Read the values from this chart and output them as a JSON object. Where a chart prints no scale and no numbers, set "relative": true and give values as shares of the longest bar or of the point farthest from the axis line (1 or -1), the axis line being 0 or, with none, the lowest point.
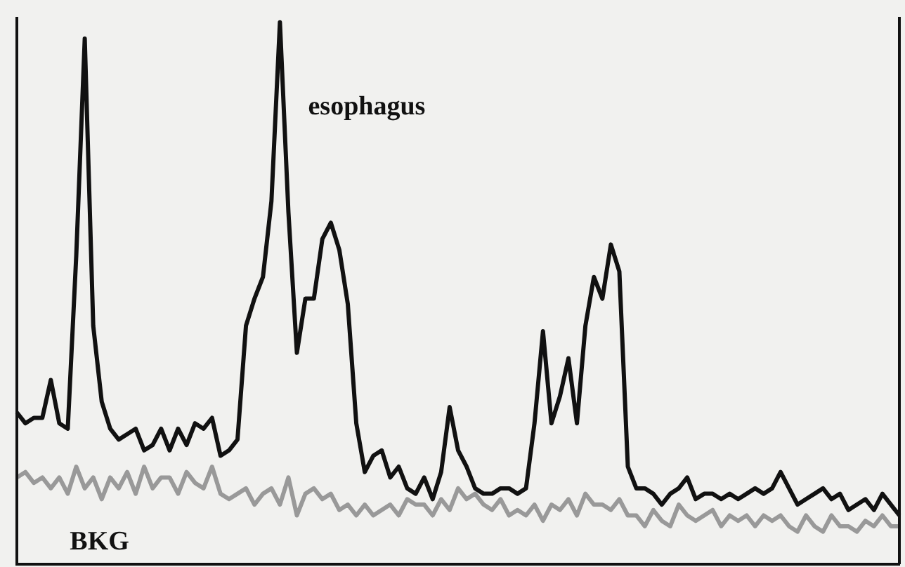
{
  "chart_data": {
    "type": "line",
    "relative": true,
    "categories": [
      null,
      null,
      null,
      null,
      null,
      null,
      null,
      null,
      null,
      null,
      null,
      null,
      null,
      null,
      null,
      null,
      null,
      null,
      null,
      null,
      null,
      null,
      null,
      null,
      null,
      null,
      null,
      null,
      null,
      null,
      null,
      null,
      null,
      null,
      null,
      null,
      null,
      null,
      null,
      null,
      null,
      null,
      null,
      null,
      null,
      null,
      null,
      null,
      null,
      null,
      null,
      null,
      null,
      null,
      null,
      null,
      null,
      null,
      null,
      null,
      null,
      null,
      null,
      null,
      null,
      null,
      null,
      null,
      null,
      null,
      null,
      null,
      null,
      null,
      null,
      null,
      null,
      null,
      null,
      null,
      null,
      null,
      null,
      null,
      null,
      null,
      null,
      null,
      null,
      null,
      null,
      null,
      null,
      null,
      null,
      null,
      null,
      null,
      null,
      null,
      null,
      null,
      null,
      null,
      null
    ],
    "series": [
      {
        "name": "esophagus",
        "color": "#111111",
        "values": [
          0.28,
          0.26,
          0.27,
          0.27,
          0.34,
          0.26,
          0.25,
          0.57,
          0.97,
          0.44,
          0.3,
          0.25,
          0.23,
          0.24,
          0.25,
          0.21,
          0.22,
          0.25,
          0.21,
          0.25,
          0.22,
          0.26,
          0.25,
          0.27,
          0.2,
          0.21,
          0.23,
          0.44,
          0.49,
          0.53,
          0.67,
          1,
          0.65,
          0.39,
          0.49,
          0.49,
          0.6,
          0.63,
          0.58,
          0.48,
          0.26,
          0.17,
          0.2,
          0.21,
          0.16,
          0.18,
          0.14,
          0.13,
          0.16,
          0.12,
          0.17,
          0.29,
          0.21,
          0.18,
          0.14,
          0.13,
          0.13,
          0.14,
          0.14,
          0.13,
          0.14,
          0.26,
          0.43,
          0.26,
          0.31,
          0.38,
          0.26,
          0.44,
          0.53,
          0.49,
          0.59,
          0.54,
          0.18,
          0.14,
          0.14,
          0.13,
          0.11,
          0.13,
          0.14,
          0.16,
          0.12,
          0.13,
          0.13,
          0.12,
          0.13,
          0.12,
          0.13,
          0.14,
          0.13,
          0.14,
          0.17,
          0.14,
          0.11,
          0.12,
          0.13,
          0.14,
          0.12,
          0.13,
          0.1,
          0.11,
          0.12,
          0.1,
          0.13,
          0.11,
          0.09
        ]
      },
      {
        "name": "BKG",
        "color": "#999999",
        "values": [
          0.16,
          0.17,
          0.15,
          0.16,
          0.14,
          0.16,
          0.13,
          0.18,
          0.14,
          0.16,
          0.12,
          0.16,
          0.14,
          0.17,
          0.13,
          0.18,
          0.14,
          0.16,
          0.16,
          0.13,
          0.17,
          0.15,
          0.14,
          0.18,
          0.13,
          0.12,
          0.13,
          0.14,
          0.11,
          0.13,
          0.14,
          0.11,
          0.16,
          0.09,
          0.13,
          0.14,
          0.12,
          0.13,
          0.1,
          0.11,
          0.09,
          0.11,
          0.09,
          0.1,
          0.11,
          0.09,
          0.12,
          0.11,
          0.11,
          0.09,
          0.12,
          0.1,
          0.14,
          0.12,
          0.13,
          0.11,
          0.1,
          0.12,
          0.09,
          0.1,
          0.09,
          0.11,
          0.08,
          0.11,
          0.1,
          0.12,
          0.09,
          0.13,
          0.11,
          0.11,
          0.1,
          0.12,
          0.09,
          0.09,
          0.07,
          0.1,
          0.08,
          0.07,
          0.11,
          0.09,
          0.08,
          0.09,
          0.1,
          0.07,
          0.09,
          0.08,
          0.09,
          0.07,
          0.09,
          0.08,
          0.09,
          0.07,
          0.06,
          0.09,
          0.07,
          0.06,
          0.09,
          0.07,
          0.07,
          0.06,
          0.08,
          0.07,
          0.09,
          0.07,
          0.07
        ]
      }
    ]
  }
}
